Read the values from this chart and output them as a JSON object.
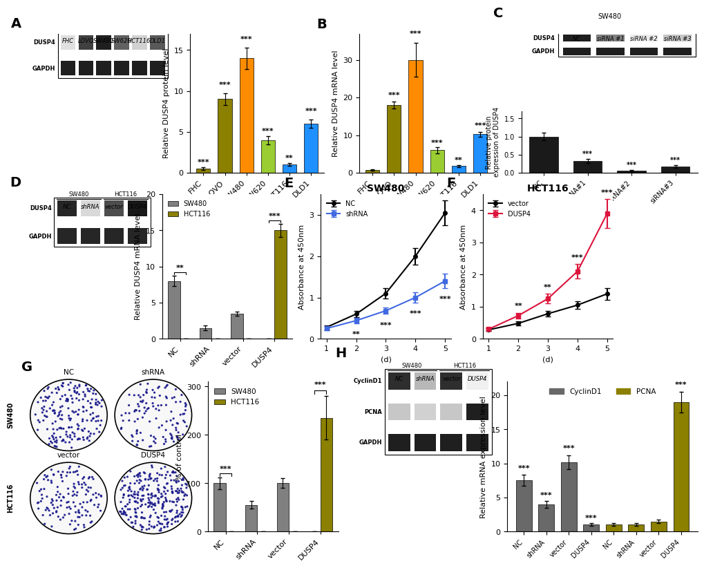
{
  "panel_A_bar": {
    "categories": [
      "FHC",
      "LOVO",
      "SW480",
      "SW620",
      "HCT116",
      "DLD1"
    ],
    "values": [
      0.5,
      9.0,
      14.0,
      4.0,
      1.0,
      6.0
    ],
    "errors": [
      0.15,
      0.7,
      1.3,
      0.5,
      0.15,
      0.5
    ],
    "colors": [
      "#8B8000",
      "#8B8000",
      "#FF8C00",
      "#9ACD32",
      "#1E90FF",
      "#1E90FF"
    ],
    "ylabel": "Relative DUSP4 protein level",
    "ylim": [
      0,
      17
    ],
    "yticks": [
      0,
      5,
      10,
      15
    ],
    "sig_labels": [
      "***",
      "***",
      "***",
      "***",
      "**",
      "***"
    ]
  },
  "panel_B_bar": {
    "categories": [
      "FHC",
      "LOVO",
      "SW480",
      "SW620",
      "HCT116",
      "DLD1"
    ],
    "values": [
      0.8,
      18.0,
      30.0,
      6.0,
      1.8,
      10.2
    ],
    "errors": [
      0.2,
      1.0,
      4.5,
      0.8,
      0.3,
      0.7
    ],
    "colors": [
      "#8B8000",
      "#8B8000",
      "#FF8C00",
      "#9ACD32",
      "#1E90FF",
      "#1E90FF"
    ],
    "ylabel": "Relative DUSP4 mRNA level",
    "ylim": [
      0,
      37
    ],
    "yticks": [
      0,
      10,
      20,
      30
    ],
    "sig_labels": [
      "",
      "***",
      "***",
      "***",
      "**",
      "***"
    ]
  },
  "panel_C_bar": {
    "categories": [
      "NC",
      "siRNA#1",
      "siRNA#2",
      "siRNA#3"
    ],
    "values": [
      1.0,
      0.32,
      0.06,
      0.18
    ],
    "errors": [
      0.1,
      0.06,
      0.02,
      0.04
    ],
    "color": "#1a1a1a",
    "ylabel": "Relative protein\nexpression of DUSP4",
    "ylim": [
      0,
      1.7
    ],
    "yticks": [
      0,
      0.5,
      1.0,
      1.5
    ],
    "sig_labels": [
      "",
      "***",
      "***",
      "***"
    ]
  },
  "panel_D_bar": {
    "categories": [
      "NC",
      "shRNA",
      "vector",
      "DUSP4"
    ],
    "values_sw480": [
      8.0,
      1.5,
      3.5,
      0.0
    ],
    "values_hct116": [
      0.0,
      0.0,
      0.0,
      15.0
    ],
    "errors_sw480": [
      0.7,
      0.3,
      0.3,
      0.0
    ],
    "errors_hct116": [
      0.0,
      0.0,
      0.0,
      0.9
    ],
    "ylabel": "Relative DUSP4 mRNA level",
    "ylim": [
      0,
      20
    ],
    "yticks": [
      0,
      5,
      10,
      15,
      20
    ],
    "color_sw480": "#808080",
    "color_hct116": "#8B8000",
    "sig_nc": "**",
    "sig_dusp4": "***"
  },
  "panel_E_line": {
    "days": [
      1,
      2,
      3,
      4,
      5
    ],
    "nc_values": [
      0.28,
      0.6,
      1.1,
      2.0,
      3.05
    ],
    "shrna_values": [
      0.25,
      0.44,
      0.68,
      1.0,
      1.4
    ],
    "nc_errors": [
      0.05,
      0.08,
      0.12,
      0.2,
      0.3
    ],
    "shrna_errors": [
      0.04,
      0.06,
      0.08,
      0.12,
      0.18
    ],
    "xlabel": "(d)",
    "ylabel": "Absorbance at 450nm",
    "ylim": [
      0,
      3.5
    ],
    "yticks": [
      0,
      1,
      2,
      3
    ],
    "title": "SW480",
    "sig_days": [
      2,
      3,
      4,
      5
    ],
    "sig_labels": [
      "**",
      "***",
      "***",
      "***"
    ],
    "nc_color": "#000000",
    "shrna_color": "#4169E1"
  },
  "panel_F_line": {
    "days": [
      1,
      2,
      3,
      4,
      5
    ],
    "vector_values": [
      0.28,
      0.48,
      0.78,
      1.05,
      1.4
    ],
    "dusp4_values": [
      0.3,
      0.72,
      1.25,
      2.1,
      3.9
    ],
    "vector_errors": [
      0.04,
      0.06,
      0.09,
      0.12,
      0.18
    ],
    "dusp4_errors": [
      0.04,
      0.09,
      0.15,
      0.22,
      0.45
    ],
    "xlabel": "(d)",
    "ylabel": "Absorbance at 450nm",
    "ylim": [
      0,
      4.5
    ],
    "yticks": [
      0,
      1,
      2,
      3,
      4
    ],
    "title": "HCT116",
    "sig_days": [
      2,
      3,
      4,
      5
    ],
    "sig_labels": [
      "**",
      "**",
      "***",
      "***"
    ],
    "vector_color": "#000000",
    "dusp4_color": "#DC143C"
  },
  "panel_G_bar": {
    "categories": [
      "NC",
      "shRNA",
      "vector",
      "DUSP4"
    ],
    "values_sw480": [
      100,
      55,
      100,
      0
    ],
    "values_hct116": [
      0,
      0,
      0,
      235
    ],
    "errors_sw480": [
      12,
      8,
      10,
      0
    ],
    "errors_hct116": [
      0,
      0,
      0,
      45
    ],
    "ylabel": "% of control",
    "ylim": [
      0,
      310
    ],
    "yticks": [
      0,
      100,
      200,
      300
    ],
    "color_sw480": "#808080",
    "color_hct116": "#8B8000"
  },
  "panel_H_bar": {
    "cyclin_values": [
      7.5,
      4.0,
      10.2,
      1.0
    ],
    "pcna_values": [
      1.0,
      1.0,
      1.5,
      19.0
    ],
    "cyclin_errors": [
      0.8,
      0.5,
      1.0,
      0.2
    ],
    "pcna_errors": [
      0.2,
      0.2,
      0.3,
      1.5
    ],
    "categories": [
      "NC",
      "shRNA",
      "vector",
      "DUSP4"
    ],
    "ylabel": "Relative mRNA expression level",
    "ylim": [
      0,
      22
    ],
    "yticks": [
      0,
      5,
      10,
      15,
      20
    ],
    "color_cyclin": "#696969",
    "color_pcna": "#8B8000",
    "sig_cyclin": [
      "***",
      "***",
      "***",
      "***"
    ],
    "sig_pcna": [
      "",
      "",
      "",
      "***"
    ]
  },
  "lfs": 14,
  "tfs": 8,
  "sfs": 8,
  "alfs": 8
}
